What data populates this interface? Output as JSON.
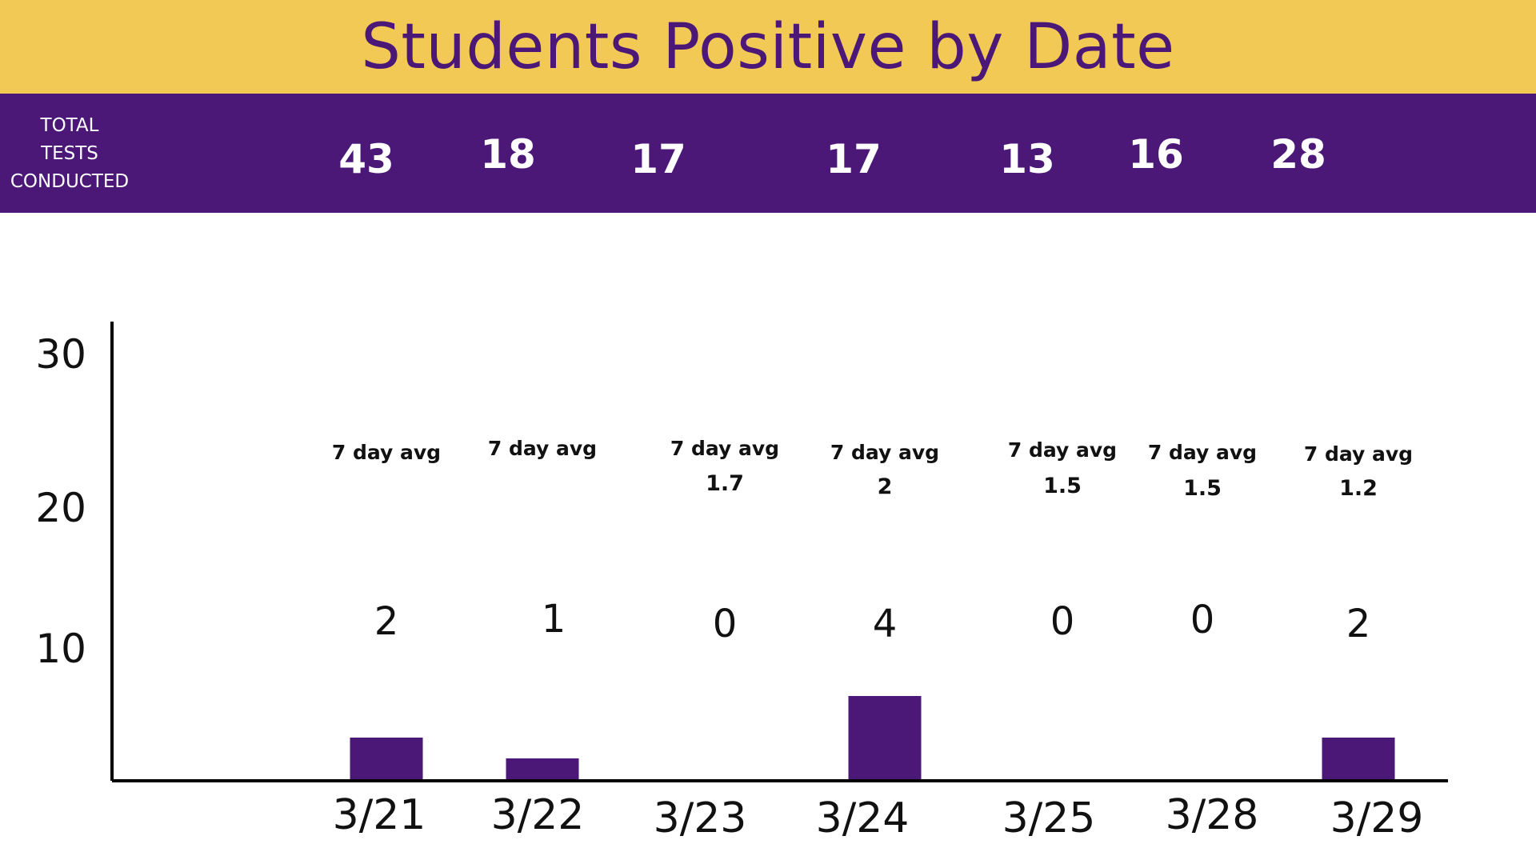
{
  "header": {
    "title": "Students Positive by Date"
  },
  "tests": {
    "label_lines": [
      "TOTAL",
      "TESTS",
      "CONDUCTED"
    ],
    "values": [
      "43",
      "18",
      "17",
      "17",
      "13",
      "16",
      "28"
    ]
  },
  "colors": {
    "title_band": "#f3c955",
    "title_text": "#4b1878",
    "tests_band": "#4b1878",
    "bar": "#4b1878",
    "axis": "#000000"
  },
  "chart_data": {
    "type": "bar",
    "title": "Students Positive by Date",
    "xlabel": "",
    "ylabel": "",
    "categories": [
      "3/21",
      "3/22",
      "3/23",
      "3/24",
      "3/25",
      "3/28",
      "3/29"
    ],
    "values": [
      2,
      1,
      0,
      4,
      0,
      0,
      2
    ],
    "value_labels": [
      "2",
      "1",
      "0",
      "4",
      "0",
      "0",
      "2"
    ],
    "avg_title": "7 day avg",
    "avg_values": [
      "",
      "",
      "1.7",
      "2",
      "1.5",
      "1.5",
      "1.2"
    ],
    "yticks": [
      "10",
      "20",
      "30"
    ],
    "ylim": [
      0,
      30
    ],
    "grid": false,
    "legend": "none"
  }
}
